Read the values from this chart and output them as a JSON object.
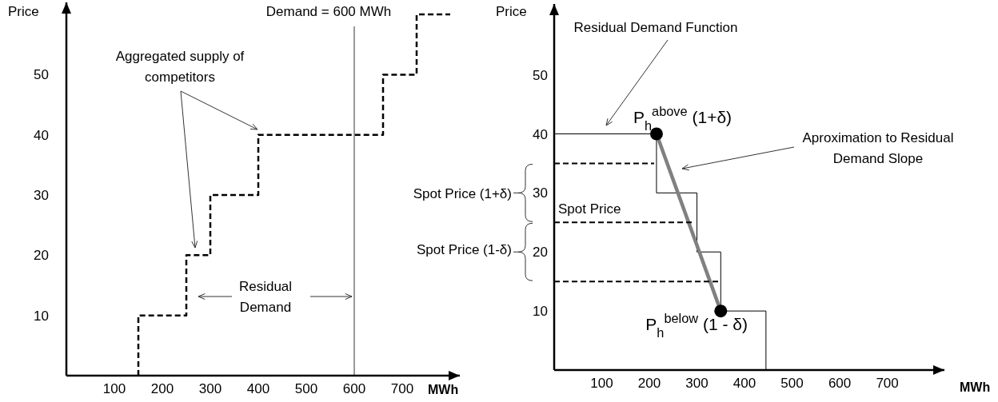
{
  "chart_data": [
    {
      "type": "line",
      "xlabel": "MWh",
      "ylabel": "Price",
      "xlim": [
        0,
        820
      ],
      "xticks": [
        100,
        200,
        300,
        400,
        500,
        600,
        700
      ],
      "ylim": [
        0,
        62
      ],
      "yticks": [
        10,
        20,
        30,
        40,
        50
      ],
      "ref_lines": [
        {
          "axis": "x",
          "value": 600,
          "label": "Demand = 600 MWh",
          "color": "#999999"
        }
      ],
      "series": [
        {
          "color": "#000000",
          "line_style": "dashed",
          "x": [
            150,
            150,
            250,
            250,
            300,
            300,
            400,
            400,
            660,
            660,
            730,
            730,
            800
          ],
          "values": [
            0,
            10,
            10,
            20,
            20,
            30,
            30,
            40,
            40,
            50,
            50,
            60,
            60
          ]
        }
      ],
      "annotations": [
        "Aggregated supply of competitors",
        "Residual Demand"
      ]
    },
    {
      "type": "line",
      "xlabel": "MWh",
      "ylabel": "Price",
      "xlim": [
        0,
        820
      ],
      "xticks": [
        100,
        200,
        300,
        400,
        500,
        600,
        700
      ],
      "ylim": [
        0,
        62
      ],
      "yticks": [
        10,
        20,
        30,
        40,
        50
      ],
      "series": [
        {
          "color": "#000000",
          "line_style": "solid",
          "x": [
            0,
            215,
            215,
            300,
            300,
            350,
            350,
            445,
            445
          ],
          "values": [
            40,
            40,
            30,
            30,
            20,
            20,
            10,
            10,
            0
          ]
        },
        {
          "color": "#808080",
          "line_style": "solid",
          "x": [
            215,
            350
          ],
          "values": [
            40,
            10
          ]
        },
        {
          "type": "scatter",
          "color": "#000000",
          "marker": "circle",
          "x": [
            215,
            350
          ],
          "values": [
            40,
            10
          ]
        },
        {
          "color": "#000000",
          "line_style": "dashed",
          "x": [
            0,
            210
          ],
          "values": [
            35,
            35
          ]
        },
        {
          "color": "#000000",
          "line_style": "dashed",
          "x": [
            0,
            295
          ],
          "values": [
            25,
            25
          ]
        },
        {
          "color": "#000000",
          "line_style": "dashed",
          "x": [
            0,
            350
          ],
          "values": [
            15,
            15
          ]
        }
      ],
      "annotations": [
        "Residual Demand Function",
        {
          "text": "P$_{h}$$^{above}$ (1+δ)",
          "x": 215,
          "y": 40
        },
        "Aproximation to Residual Demand Slope",
        "Spot Price (1+δ)",
        "Spot Price",
        "Spot Price (1-δ)",
        {
          "text": "P$_{h}$$^{below}$ (1 - δ)",
          "x": 350,
          "y": 10
        }
      ]
    }
  ]
}
